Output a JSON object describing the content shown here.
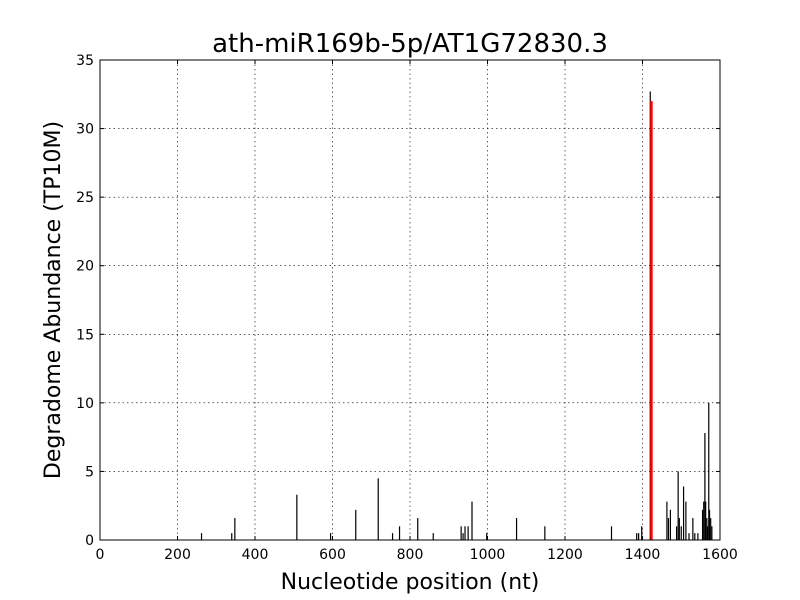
{
  "chart_data": {
    "type": "bar",
    "title": "ath-miR169b-5p/AT1G72830.3",
    "xlabel": "Nucleotide position (nt)",
    "ylabel": "Degradome Abundance (TP10M)",
    "xlim": [
      0,
      1600
    ],
    "ylim": [
      0,
      35
    ],
    "xticks": [
      0,
      200,
      400,
      600,
      800,
      1000,
      1200,
      1400,
      1600
    ],
    "yticks": [
      0,
      5,
      10,
      15,
      20,
      25,
      30,
      35
    ],
    "grid": true,
    "colors": {
      "series": "#000000",
      "target": "#ff0000"
    },
    "series": [
      {
        "x": [
          262,
          340,
          348,
          508,
          595,
          660,
          718,
          755,
          773,
          820,
          860,
          932,
          937,
          942,
          950,
          960,
          998,
          1075,
          1148,
          1320,
          1385,
          1390,
          1398,
          1420,
          1463,
          1467,
          1472,
          1488,
          1492,
          1495,
          1500,
          1506,
          1512,
          1520,
          1530,
          1535,
          1543,
          1555,
          1558,
          1561,
          1563,
          1566,
          1568,
          1571,
          1573,
          1576,
          1579
        ],
        "values": [
          0.5,
          0.5,
          1.6,
          3.3,
          0.5,
          2.2,
          4.5,
          0.5,
          1.0,
          1.6,
          0.5,
          1.0,
          0.5,
          1.0,
          1.0,
          2.8,
          0.5,
          1.6,
          1.0,
          1.0,
          0.5,
          0.5,
          1.0,
          32.7,
          2.8,
          1.6,
          2.2,
          1.0,
          5.0,
          1.6,
          1.0,
          3.9,
          2.8,
          0.5,
          1.6,
          0.5,
          0.5,
          2.2,
          2.8,
          7.8,
          2.8,
          1.6,
          1.0,
          10.0,
          2.2,
          1.6,
          1.0
        ]
      },
      {
        "x": [
          1423
        ],
        "values": [
          32.0
        ]
      }
    ]
  }
}
